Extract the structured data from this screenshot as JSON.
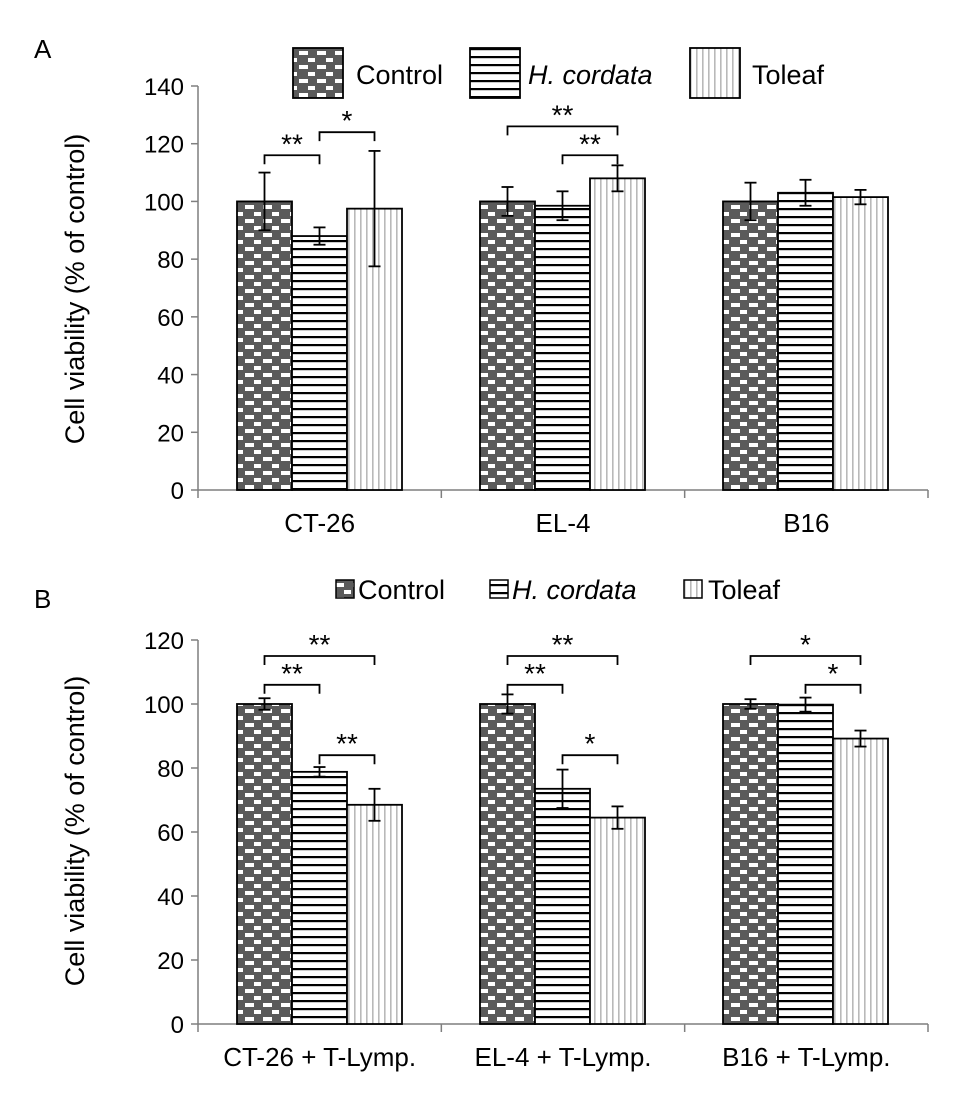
{
  "colors": {
    "control_fill": "#5a5a5a",
    "control_brick": "#ffffff",
    "hcordata_line": "#000000",
    "toleaf_line": "#b9b9b9",
    "axis": "#7f7f7f"
  },
  "legend": {
    "control": "Control",
    "hcordata": "H. cordata",
    "toleaf": "Toleaf"
  },
  "chart_data": [
    {
      "panel": "A",
      "type": "bar",
      "ylabel": "Cell viability (% of control)",
      "ylim": [
        0,
        140
      ],
      "yticks": [
        0,
        20,
        40,
        60,
        80,
        100,
        120,
        140
      ],
      "grid": false,
      "legend_position": "top",
      "categories": [
        "CT-26",
        "EL-4",
        "B16"
      ],
      "series": [
        {
          "name": "Control",
          "pattern": "brick",
          "values": [
            100,
            100,
            100
          ],
          "errors": [
            10,
            5,
            6.5
          ]
        },
        {
          "name": "H. cordata",
          "pattern": "horizontal",
          "values": [
            88,
            98.5,
            103
          ],
          "errors": [
            3,
            5,
            4.5
          ]
        },
        {
          "name": "Toleaf",
          "pattern": "vertical",
          "values": [
            97.5,
            108,
            101.5
          ],
          "errors": [
            20,
            4.5,
            2.5
          ]
        }
      ],
      "significance": [
        {
          "category": 0,
          "from": 0,
          "to": 1,
          "y": 116,
          "label": "**"
        },
        {
          "category": 0,
          "from": 1,
          "to": 2,
          "y": 124,
          "label": "*"
        },
        {
          "category": 1,
          "from": 0,
          "to": 2,
          "y": 126,
          "label": "**"
        },
        {
          "category": 1,
          "from": 1,
          "to": 2,
          "y": 116,
          "label": "**"
        }
      ]
    },
    {
      "panel": "B",
      "type": "bar",
      "ylabel": "Cell viability (% of control)",
      "ylim": [
        0,
        120
      ],
      "yticks": [
        0,
        20,
        40,
        60,
        80,
        100,
        120
      ],
      "grid": false,
      "legend_position": "top",
      "categories": [
        "CT-26 + T-Lymp.",
        "EL-4 + T-Lymp.",
        "B16 + T-Lymp."
      ],
      "series": [
        {
          "name": "Control",
          "pattern": "brick",
          "values": [
            100,
            100,
            100
          ],
          "errors": [
            1.8,
            3,
            1.5
          ]
        },
        {
          "name": "H. cordata",
          "pattern": "horizontal",
          "values": [
            78.8,
            73.5,
            99.8
          ],
          "errors": [
            1.5,
            6,
            2.2
          ]
        },
        {
          "name": "Toleaf",
          "pattern": "vertical",
          "values": [
            68.5,
            64.5,
            89.2
          ],
          "errors": [
            5,
            3.5,
            2.5
          ]
        }
      ],
      "significance": [
        {
          "category": 0,
          "from": 0,
          "to": 2,
          "y": 115,
          "label": "**"
        },
        {
          "category": 0,
          "from": 0,
          "to": 1,
          "y": 106,
          "label": "**"
        },
        {
          "category": 0,
          "from": 1,
          "to": 2,
          "y": 84,
          "label": "**"
        },
        {
          "category": 1,
          "from": 0,
          "to": 2,
          "y": 115,
          "label": "**"
        },
        {
          "category": 1,
          "from": 0,
          "to": 1,
          "y": 106,
          "label": "**"
        },
        {
          "category": 1,
          "from": 1,
          "to": 2,
          "y": 84,
          "label": "*"
        },
        {
          "category": 2,
          "from": 0,
          "to": 2,
          "y": 115,
          "label": "*"
        },
        {
          "category": 2,
          "from": 1,
          "to": 2,
          "y": 106,
          "label": "*"
        }
      ]
    }
  ]
}
